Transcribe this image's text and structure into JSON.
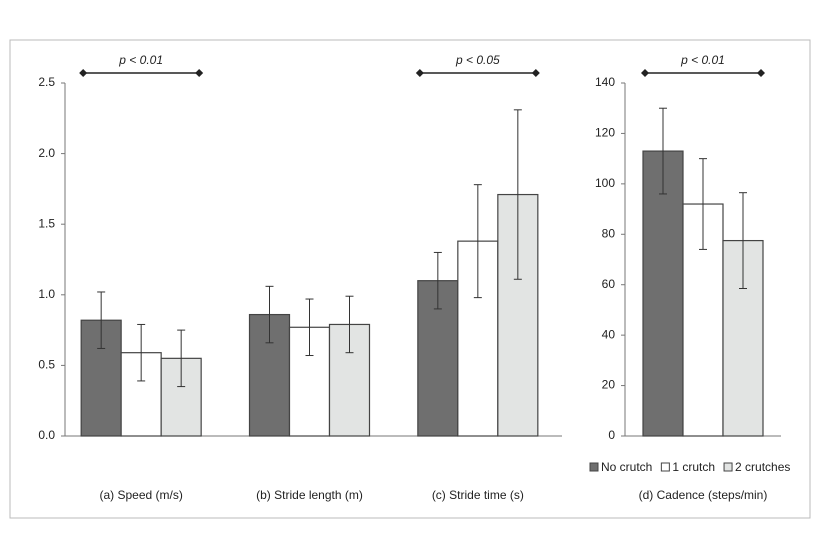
{
  "chart_data": [
    {
      "type": "bar",
      "categories": [
        "(a) Speed (m/s)",
        "(b) Stride length (m)",
        "(c) Stride time (s)"
      ],
      "annotations": [
        "p < 0.01",
        null,
        "p < 0.05"
      ],
      "series": [
        {
          "color": "#6f6f6f",
          "values": [
            0.82,
            0.86,
            1.1
          ],
          "errors": [
            0.2,
            0.2,
            0.2
          ]
        },
        {
          "color": "#ffffff",
          "values": [
            0.59,
            0.77,
            1.38
          ],
          "errors": [
            0.2,
            0.2,
            0.4
          ]
        },
        {
          "color": "#e2e4e3",
          "values": [
            0.55,
            0.79,
            1.71
          ],
          "errors": [
            0.2,
            0.2,
            0.6
          ]
        }
      ],
      "ylim": [
        0,
        2.5
      ],
      "yticks": [
        {
          "value": 0,
          "label": "0.0"
        },
        {
          "value": 0.5,
          "label": "0.5"
        },
        {
          "value": 1,
          "label": "1.0"
        },
        {
          "value": 1.5,
          "label": "1.5"
        },
        {
          "value": 2,
          "label": "2.0"
        },
        {
          "value": 2.5,
          "label": "2.5"
        }
      ]
    },
    {
      "type": "bar",
      "categories": [
        "(d) Cadence (steps/min)"
      ],
      "annotations": [
        "p < 0.01"
      ],
      "series": [
        {
          "name": "No crutch",
          "color": "#6f6f6f",
          "values": [
            113
          ],
          "errors": [
            17
          ]
        },
        {
          "name": "1 crutch",
          "color": "#ffffff",
          "values": [
            92
          ],
          "errors": [
            18
          ]
        },
        {
          "name": "2 crutches",
          "color": "#e2e4e3",
          "values": [
            77.5
          ],
          "errors": [
            19
          ]
        }
      ],
      "ylim": [
        0,
        140
      ],
      "yticks": [
        0,
        20,
        40,
        60,
        80,
        100,
        120,
        140
      ],
      "legend": "bottom"
    }
  ]
}
